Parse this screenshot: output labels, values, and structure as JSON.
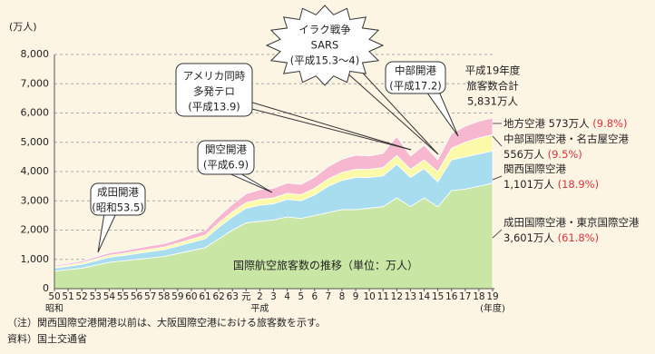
{
  "chart_data": {
    "type": "stacked-area",
    "title": "国際航空旅客数の推移（単位：万人）",
    "y_unit": "(万人)",
    "categories": [
      "50",
      "51",
      "52",
      "53",
      "54",
      "55",
      "56",
      "57",
      "58",
      "59",
      "60",
      "61",
      "62",
      "63",
      "元",
      "2",
      "3",
      "4",
      "5",
      "6",
      "7",
      "8",
      "9",
      "10",
      "11",
      "12",
      "13",
      "14",
      "15",
      "16",
      "17",
      "18",
      "19"
    ],
    "era_labels": [
      "昭和",
      "平成"
    ],
    "x_unit": "(年度)",
    "ylim": [
      0,
      8000
    ],
    "yticks": [
      0,
      {
        "value": 1000,
        "label": "1,000"
      },
      {
        "value": 2000,
        "label": "2,000"
      },
      {
        "value": 3000,
        "label": "3,000"
      },
      {
        "value": 4000,
        "label": "4,000"
      },
      {
        "value": 5000,
        "label": "5,000"
      },
      {
        "value": 6000,
        "label": "6,000"
      },
      {
        "value": 7000,
        "label": "7,000"
      },
      {
        "value": 8000,
        "label": "8,000"
      }
    ],
    "grid": true,
    "series": [
      {
        "name": "成田国際空港・東京国際空港",
        "color": "#c9e6a4",
        "total_label": "3,601万人",
        "share_label": "(61.8%)",
        "values": [
          600,
          650,
          700,
          800,
          900,
          950,
          1000,
          1050,
          1100,
          1200,
          1300,
          1400,
          1700,
          2000,
          2250,
          2300,
          2350,
          2450,
          2400,
          2500,
          2600,
          2700,
          2700,
          2750,
          2800,
          3100,
          2800,
          3100,
          2800,
          3350,
          3400,
          3500,
          3601
        ]
      },
      {
        "name": "関西国際空港",
        "color": "#a8dcef",
        "total_label": "1,101万人",
        "share_label": "(18.9%)",
        "values": [
          100,
          110,
          130,
          150,
          170,
          180,
          200,
          220,
          230,
          250,
          280,
          300,
          400,
          450,
          500,
          550,
          550,
          600,
          600,
          700,
          900,
          1000,
          1100,
          1050,
          1050,
          1150,
          1000,
          1000,
          850,
          1050,
          1100,
          1100,
          1101
        ]
      },
      {
        "name": "中部国際空港・名古屋空港",
        "color": "#fcfaa8",
        "total_label": "556万人",
        "share_label": "(9.5%)",
        "values": [
          50,
          50,
          55,
          60,
          70,
          70,
          80,
          80,
          90,
          100,
          110,
          120,
          150,
          170,
          190,
          200,
          200,
          210,
          210,
          230,
          250,
          270,
          280,
          280,
          290,
          300,
          280,
          300,
          350,
          400,
          500,
          550,
          556
        ]
      },
      {
        "name": "地方空港",
        "color": "#f7b8cf",
        "total_label": "573万人",
        "share_label": "(9.8%)",
        "values": [
          50,
          50,
          60,
          70,
          80,
          90,
          100,
          110,
          120,
          130,
          150,
          170,
          220,
          260,
          300,
          330,
          330,
          350,
          350,
          380,
          420,
          450,
          480,
          450,
          480,
          650,
          450,
          500,
          400,
          500,
          550,
          570,
          573
        ]
      }
    ],
    "annotations": [
      {
        "lines": [
          "成田開港",
          "(昭和53.5)"
        ]
      },
      {
        "lines": [
          "関空開港",
          "(平成6.9)"
        ]
      },
      {
        "lines": [
          "アメリカ同時",
          "多発テロ",
          "(平成13.9)"
        ]
      },
      {
        "lines": [
          "イラク戦争",
          "SARS",
          "(平成15.3～4)"
        ]
      },
      {
        "lines": [
          "中部開港",
          "(平成17.2)"
        ]
      },
      {
        "lines": [
          "平成19年度",
          "旅客数合計",
          "5,831万人"
        ]
      }
    ],
    "notes": [
      "（注）関西国際空港開港以前は、大阪国際空港における旅客数を示す。",
      "資料）国土交通省"
    ]
  }
}
